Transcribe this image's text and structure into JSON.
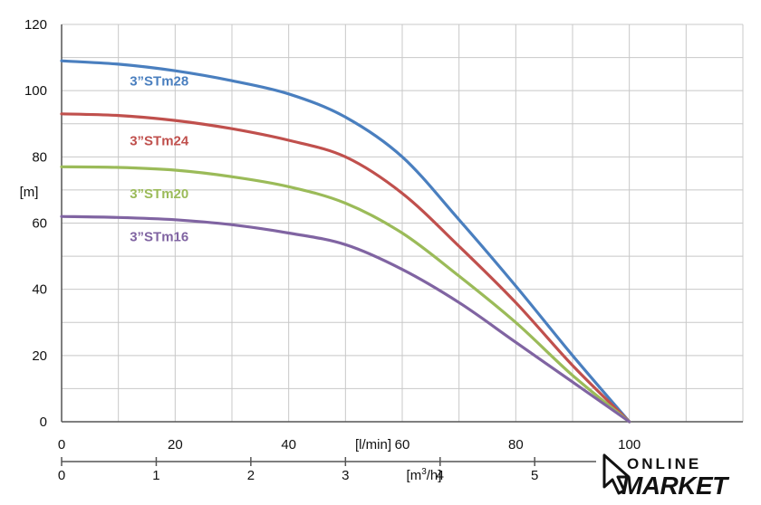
{
  "chart_data": {
    "type": "line",
    "ylabel": "[m]",
    "xlabel": "[l/min]",
    "xlabel2": "[m³/h]",
    "xlabel2_base": "[m",
    "xlabel2_sup": "3",
    "xlabel2_tail": "/h]",
    "xlim": [
      0,
      120
    ],
    "ylim": [
      0,
      120
    ],
    "grid": true,
    "y_ticks": [
      "0",
      "20",
      "40",
      "60",
      "80",
      "100",
      "120"
    ],
    "y_tick_values": [
      0,
      20,
      40,
      60,
      80,
      100,
      120
    ],
    "x_ticks": [
      "0",
      "20",
      "40",
      "60",
      "80",
      "100"
    ],
    "x_tick_values": [
      0,
      20,
      40,
      60,
      80,
      100
    ],
    "x2_ticks": [
      "0",
      "1",
      "2",
      "3",
      "4",
      "5"
    ],
    "x2_tick_values_lmin": [
      0,
      16.67,
      33.33,
      50,
      66.67,
      83.33
    ],
    "series": [
      {
        "name": "3”STm28",
        "color": "#4a7fbf",
        "label_at": [
          12,
          101.5
        ],
        "x": [
          0,
          10,
          20,
          30,
          40,
          50,
          60,
          70,
          80,
          90,
          100
        ],
        "y": [
          109,
          108,
          106,
          103,
          99,
          92,
          80,
          61,
          41,
          20,
          0
        ]
      },
      {
        "name": "3”STm24",
        "color": "#c0504d",
        "label_at": [
          12,
          83.5
        ],
        "x": [
          0,
          10,
          20,
          30,
          40,
          50,
          60,
          70,
          80,
          90,
          100
        ],
        "y": [
          93,
          92.5,
          91,
          88.5,
          85,
          80,
          69,
          53,
          36,
          17,
          0
        ]
      },
      {
        "name": "3”STm20",
        "color": "#9bbb59",
        "label_at": [
          12,
          67.5
        ],
        "x": [
          0,
          10,
          20,
          30,
          40,
          50,
          60,
          70,
          80,
          90,
          100
        ],
        "y": [
          77,
          76.8,
          76,
          74,
          71,
          66,
          57,
          44,
          30,
          14,
          0
        ]
      },
      {
        "name": "3”STm16",
        "color": "#8064a2",
        "label_at": [
          12,
          54.5
        ],
        "x": [
          0,
          10,
          20,
          30,
          40,
          50,
          60,
          70,
          80,
          90,
          100
        ],
        "y": [
          62,
          61.7,
          61,
          59.5,
          57,
          53.5,
          46,
          36,
          24,
          12,
          0
        ]
      }
    ]
  },
  "logo": {
    "line1": "ONLINE",
    "line2": "MARKET"
  }
}
